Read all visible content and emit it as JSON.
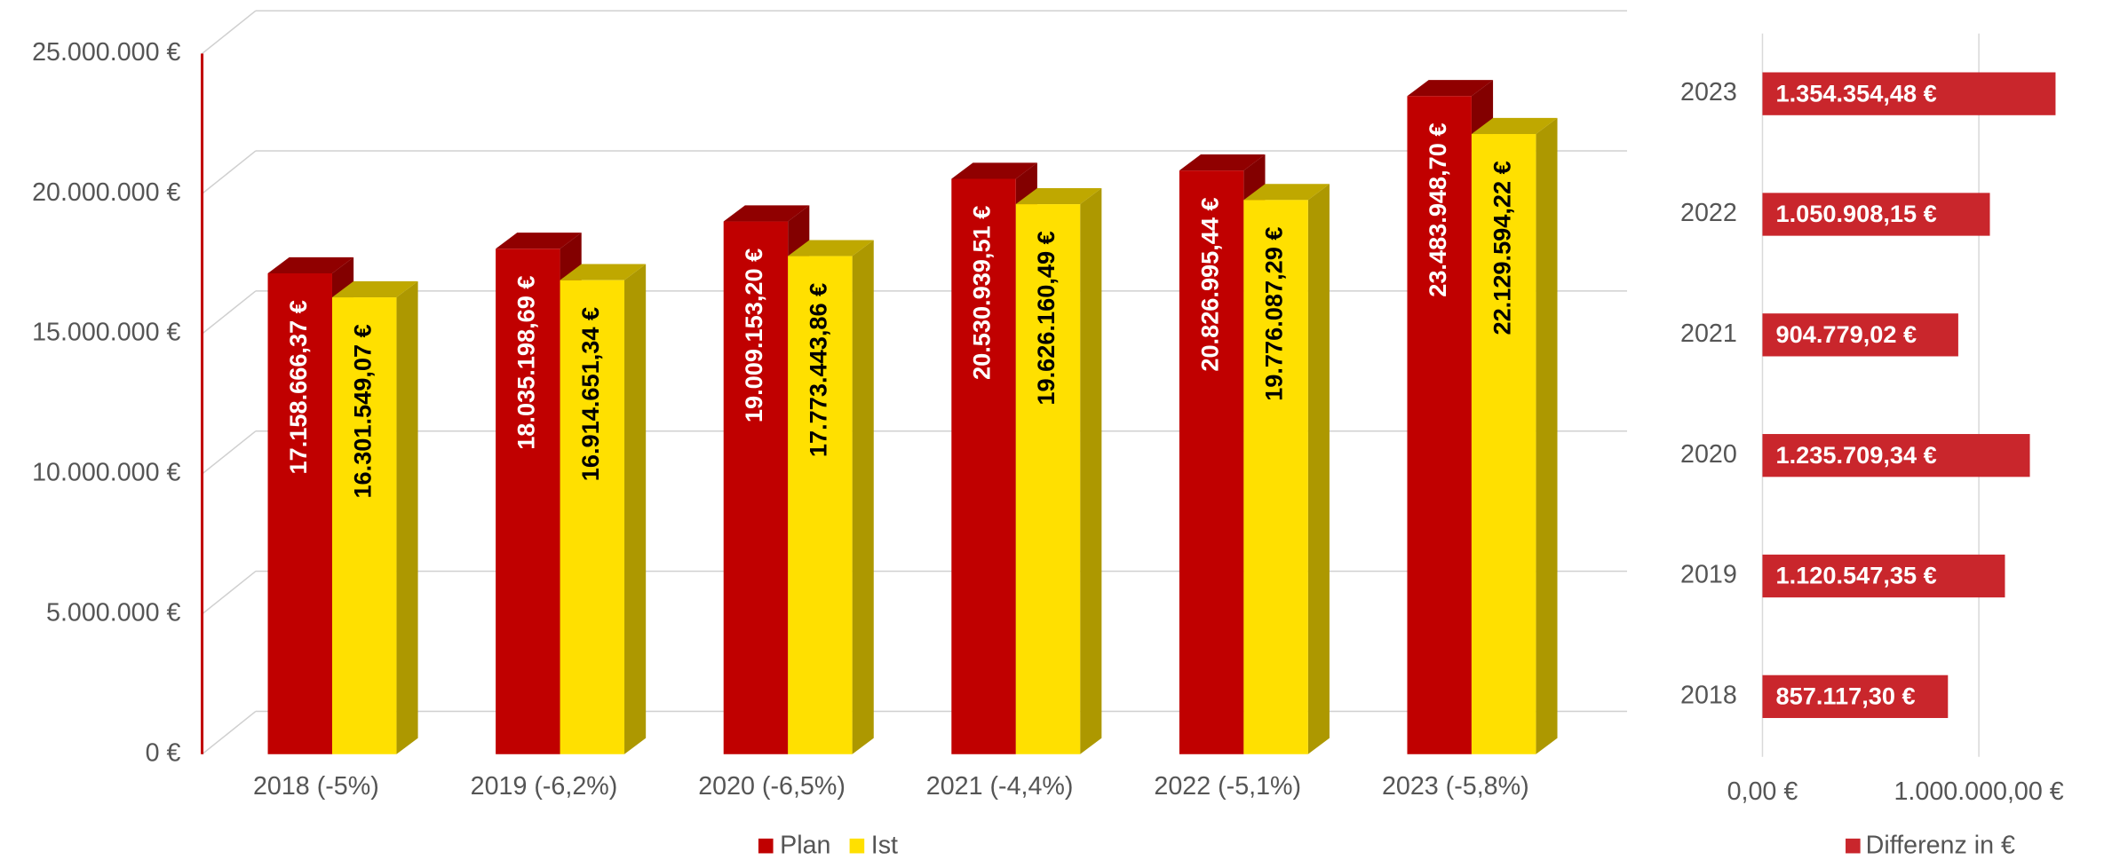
{
  "chart_data": [
    {
      "type": "bar3d",
      "categories": [
        "2018 (-5%)",
        "2019 (-6,2%)",
        "2020 (-6,5%)",
        "2021 (-4,4%)",
        "2022 (-5,1%)",
        "2023 (-5,8%)"
      ],
      "series": [
        {
          "name": "Plan",
          "color": "#c00000",
          "values": [
            17158666.37,
            18035198.69,
            19009153.2,
            20530939.51,
            20826995.44,
            23483948.7
          ],
          "value_labels": [
            "17.158.666,37 €",
            "18.035.198,69 €",
            "19.009.153,20 €",
            "20.530.939,51 €",
            "20.826.995,44 €",
            "23.483.948,70 €"
          ]
        },
        {
          "name": "Ist",
          "color": "#ffe000",
          "values": [
            16301549.07,
            16914651.34,
            17773443.86,
            19626160.49,
            19776087.29,
            22129594.22
          ],
          "value_labels": [
            "16.301.549,07 €",
            "16.914.651,34 €",
            "17.773.443,86 €",
            "19.626.160,49 €",
            "19.776.087,29 €",
            "22.129.594,22 €"
          ]
        }
      ],
      "ylim": [
        0,
        25000000
      ],
      "yticks": [
        {
          "value": 0,
          "label": "0 €"
        },
        {
          "value": 5000000,
          "label": "5.000.000 €"
        },
        {
          "value": 10000000,
          "label": "10.000.000 €"
        },
        {
          "value": 15000000,
          "label": "15.000.000 €"
        },
        {
          "value": 20000000,
          "label": "20.000.000 €"
        },
        {
          "value": 25000000,
          "label": "25.000.000 €"
        }
      ],
      "grid": true,
      "legend": "bottom"
    },
    {
      "type": "hbar",
      "categories": [
        "2018",
        "2019",
        "2020",
        "2021",
        "2022",
        "2023"
      ],
      "series": [
        {
          "name": "Differenz in €",
          "color": "#c9262c",
          "values": [
            857117.3,
            1120547.35,
            1235709.34,
            904779.02,
            1050908.15,
            1354354.48
          ],
          "value_labels": [
            "857.117,30 €",
            "1.120.547,35 €",
            "1.235.709,34 €",
            "904.779,02 €",
            "1.050.908,15 €",
            "1.354.354,48 €"
          ]
        }
      ],
      "xlim": [
        0,
        1400000
      ],
      "xticks": [
        {
          "value": 0,
          "label": "0,00 €"
        },
        {
          "value": 1000000,
          "label": "1.000.000,00 €"
        }
      ],
      "grid": true,
      "legend": "bottom"
    }
  ]
}
